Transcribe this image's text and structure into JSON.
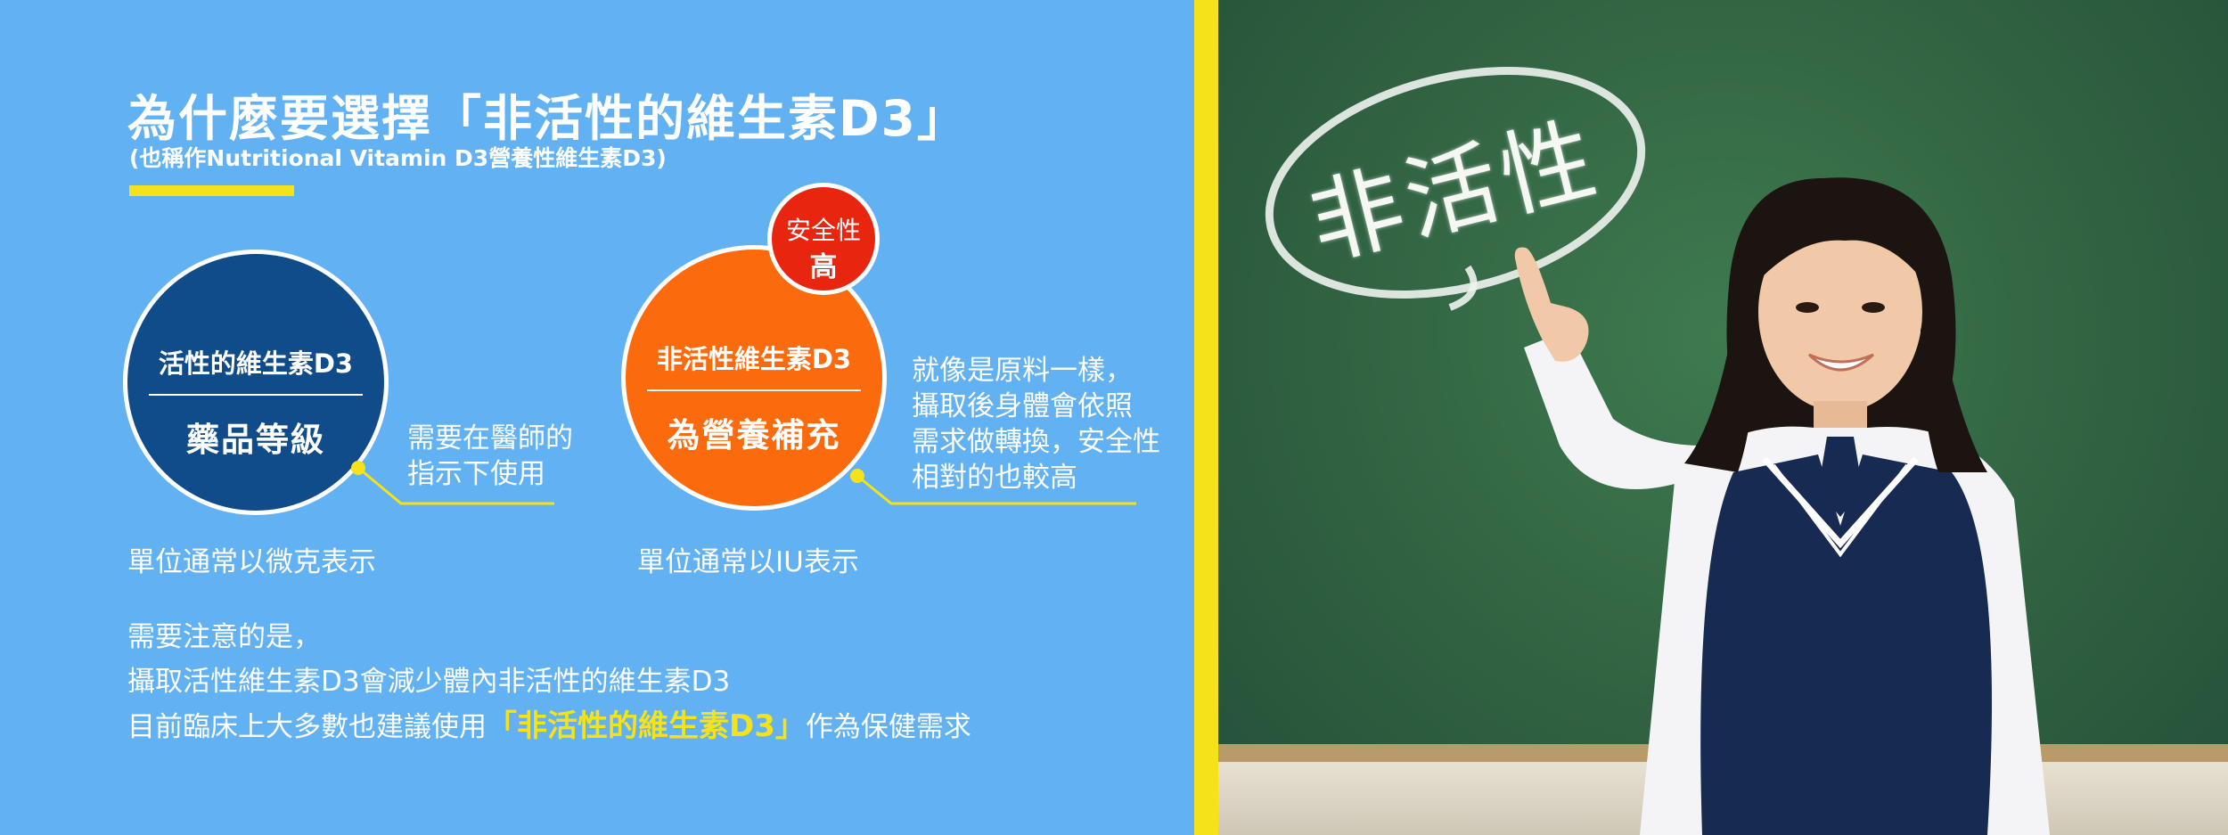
{
  "header": {
    "title": "為什麼要選擇「非活性的維生素D3」",
    "subtitle": "(也稱作Nutritional Vitamin D3營養性維生素D3)"
  },
  "active_d3": {
    "name": "活性的維生素D3",
    "grade": "藥品等級",
    "note_lines": [
      "需要在醫師的",
      "指示下使用"
    ],
    "unit_text": "單位通常以微克表示"
  },
  "inactive_d3": {
    "name": "非活性維生素D3",
    "grade": "為營養補充",
    "badge_line1": "安全性",
    "badge_line2": "高",
    "note_lines": [
      "就像是原料一樣，",
      "攝取後身體會依照",
      "需求做轉換，安全性",
      "相對的也較高"
    ],
    "unit_text": "單位通常以IU表示"
  },
  "caution": {
    "line1": "需要注意的是，",
    "line2": "攝取活性維生素D3會減少體內非活性的維生素D3",
    "line3_prefix": "目前臨床上大多數也建議使用",
    "line3_highlight": "「非活性的維生素D3」",
    "line3_suffix": "作為保健需求"
  },
  "photo": {
    "chalk_text": "非活性"
  },
  "colors": {
    "panel_blue": "#62b1f2",
    "accent_yellow": "#f5e21a",
    "active_navy": "#114c8a",
    "inactive_orange": "#fb6a0c",
    "badge_red": "#e8250f",
    "chalkboard_green": "#2f6040"
  }
}
